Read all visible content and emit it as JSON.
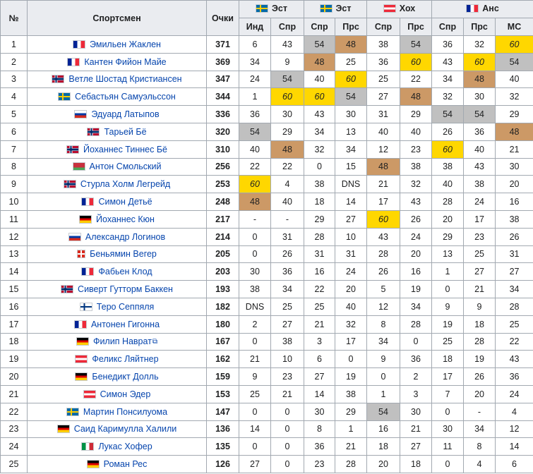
{
  "headers": {
    "num": "№",
    "athlete": "Спортсмен",
    "points": "Очки",
    "stages": [
      {
        "label": "Эст",
        "flag": "SWE",
        "subs": [
          "Инд",
          "Спр"
        ]
      },
      {
        "label": "Эст",
        "flag": "SWE",
        "subs": [
          "Спр",
          "Прс"
        ]
      },
      {
        "label": "Хох",
        "flag": "AUT",
        "subs": [
          "Спр",
          "Прс"
        ]
      },
      {
        "label": "Анс",
        "flag": "FRA",
        "subs": [
          "Спр",
          "Прс",
          "МС"
        ]
      }
    ]
  },
  "colors": {
    "gold": "#ffd700",
    "silver": "#c0c0c0",
    "bronze": "#cc9966",
    "header": "#eaecf0",
    "link": "#0645ad"
  },
  "rows": [
    {
      "num": "1",
      "flag": "FRA",
      "name": "Эмильен Жаклен",
      "points": "371",
      "results": [
        "6",
        "43",
        "54",
        "48",
        "38",
        "54",
        "36",
        "32",
        "60"
      ],
      "styles": [
        "",
        "",
        "s",
        "b",
        "",
        "s",
        "",
        "",
        "g"
      ]
    },
    {
      "num": "2",
      "flag": "FRA",
      "name": "Кантен Фийон Майе",
      "points": "369",
      "results": [
        "34",
        "9",
        "48",
        "25",
        "36",
        "60",
        "43",
        "60",
        "54"
      ],
      "styles": [
        "",
        "",
        "b",
        "",
        "",
        "g",
        "",
        "g",
        "s"
      ]
    },
    {
      "num": "3",
      "flag": "NOR",
      "name": "Ветле Шостад Кристиансен",
      "points": "347",
      "results": [
        "24",
        "54",
        "40",
        "60",
        "25",
        "22",
        "34",
        "48",
        "40"
      ],
      "styles": [
        "",
        "s",
        "",
        "g",
        "",
        "",
        "",
        "b",
        ""
      ]
    },
    {
      "num": "4",
      "flag": "SWE",
      "name": "Себастьян Самуэльссон",
      "points": "344",
      "results": [
        "1",
        "60",
        "60",
        "54",
        "27",
        "48",
        "32",
        "30",
        "32"
      ],
      "styles": [
        "",
        "g",
        "g",
        "s",
        "",
        "b",
        "",
        "",
        ""
      ]
    },
    {
      "num": "5",
      "flag": "RUS",
      "name": "Эдуард Латыпов",
      "points": "336",
      "results": [
        "36",
        "30",
        "43",
        "30",
        "31",
        "29",
        "54",
        "54",
        "29"
      ],
      "styles": [
        "",
        "",
        "",
        "",
        "",
        "",
        "s",
        "s",
        ""
      ]
    },
    {
      "num": "6",
      "flag": "NOR",
      "name": "Тарьей Бё",
      "points": "320",
      "results": [
        "54",
        "29",
        "34",
        "13",
        "40",
        "40",
        "26",
        "36",
        "48"
      ],
      "styles": [
        "s",
        "",
        "",
        "",
        "",
        "",
        "",
        "",
        "b"
      ]
    },
    {
      "num": "7",
      "flag": "NOR",
      "name": "Йоханнес Тиннес Бё",
      "points": "310",
      "results": [
        "40",
        "48",
        "32",
        "34",
        "12",
        "23",
        "60",
        "40",
        "21"
      ],
      "styles": [
        "",
        "b",
        "",
        "",
        "",
        "",
        "g",
        "",
        ""
      ]
    },
    {
      "num": "8",
      "flag": "BLR",
      "name": "Антон Смольский",
      "points": "256",
      "results": [
        "22",
        "22",
        "0",
        "15",
        "48",
        "38",
        "38",
        "43",
        "30"
      ],
      "styles": [
        "",
        "",
        "",
        "",
        "b",
        "",
        "",
        "",
        ""
      ]
    },
    {
      "num": "9",
      "flag": "NOR",
      "name": "Стурла Холм Легрейд",
      "points": "253",
      "results": [
        "60",
        "4",
        "38",
        "DNS",
        "21",
        "32",
        "40",
        "38",
        "20"
      ],
      "styles": [
        "g",
        "",
        "",
        "",
        "",
        "",
        "",
        "",
        ""
      ]
    },
    {
      "num": "10",
      "flag": "FRA",
      "name": "Симон Детьё",
      "points": "248",
      "results": [
        "48",
        "40",
        "18",
        "14",
        "17",
        "43",
        "28",
        "24",
        "16"
      ],
      "styles": [
        "b",
        "",
        "",
        "",
        "",
        "",
        "",
        "",
        ""
      ]
    },
    {
      "num": "11",
      "flag": "GER",
      "name": "Йоханнес Кюн",
      "points": "217",
      "results": [
        "-",
        "-",
        "29",
        "27",
        "60",
        "26",
        "20",
        "17",
        "38"
      ],
      "styles": [
        "",
        "",
        "",
        "",
        "g",
        "",
        "",
        "",
        ""
      ]
    },
    {
      "num": "12",
      "flag": "RUS",
      "name": "Александр Логинов",
      "points": "214",
      "results": [
        "0",
        "31",
        "28",
        "10",
        "43",
        "24",
        "29",
        "23",
        "26"
      ],
      "styles": [
        "",
        "",
        "",
        "",
        "",
        "",
        "",
        "",
        ""
      ]
    },
    {
      "num": "13",
      "flag": "SUI",
      "name": "Беньямин Вегер",
      "points": "205",
      "results": [
        "0",
        "26",
        "31",
        "31",
        "28",
        "20",
        "13",
        "25",
        "31"
      ],
      "styles": [
        "",
        "",
        "",
        "",
        "",
        "",
        "",
        "",
        ""
      ]
    },
    {
      "num": "14",
      "flag": "FRA",
      "name": "Фабьен Клод",
      "points": "203",
      "results": [
        "30",
        "36",
        "16",
        "24",
        "26",
        "16",
        "1",
        "27",
        "27"
      ],
      "styles": [
        "",
        "",
        "",
        "",
        "",
        "",
        "",
        "",
        ""
      ]
    },
    {
      "num": "15",
      "flag": "NOR",
      "name": "Сиверт Гутторм Баккен",
      "points": "193",
      "results": [
        "38",
        "34",
        "22",
        "20",
        "5",
        "19",
        "0",
        "21",
        "34"
      ],
      "styles": [
        "",
        "",
        "",
        "",
        "",
        "",
        "",
        "",
        ""
      ]
    },
    {
      "num": "16",
      "flag": "FIN",
      "name": "Теро Сеппяля",
      "points": "182",
      "results": [
        "DNS",
        "25",
        "25",
        "40",
        "12",
        "34",
        "9",
        "9",
        "28"
      ],
      "styles": [
        "",
        "",
        "",
        "",
        "",
        "",
        "",
        "",
        ""
      ]
    },
    {
      "num": "17",
      "flag": "FRA",
      "name": "Антонен Гигонна",
      "points": "180",
      "results": [
        "2",
        "27",
        "21",
        "32",
        "8",
        "28",
        "19",
        "18",
        "25"
      ],
      "styles": [
        "",
        "",
        "",
        "",
        "",
        "",
        "",
        "",
        ""
      ]
    },
    {
      "num": "18",
      "flag": "GER",
      "name": "Филип Наврат",
      "points": "167",
      "results": [
        "0",
        "38",
        "3",
        "17",
        "34",
        "0",
        "25",
        "28",
        "22"
      ],
      "styles": [
        "",
        "",
        "",
        "",
        "",
        "",
        "",
        "",
        ""
      ],
      "external": true
    },
    {
      "num": "19",
      "flag": "AUT",
      "name": "Феликс Ляйтнер",
      "points": "162",
      "results": [
        "21",
        "10",
        "6",
        "0",
        "9",
        "36",
        "18",
        "19",
        "43"
      ],
      "styles": [
        "",
        "",
        "",
        "",
        "",
        "",
        "",
        "",
        ""
      ]
    },
    {
      "num": "20",
      "flag": "GER",
      "name": "Бенедикт Долль",
      "points": "159",
      "results": [
        "9",
        "23",
        "27",
        "19",
        "0",
        "2",
        "17",
        "26",
        "36"
      ],
      "styles": [
        "",
        "",
        "",
        "",
        "",
        "",
        "",
        "",
        ""
      ]
    },
    {
      "num": "21",
      "flag": "AUT",
      "name": "Симон Эдер",
      "points": "153",
      "results": [
        "25",
        "21",
        "14",
        "38",
        "1",
        "3",
        "7",
        "20",
        "24"
      ],
      "styles": [
        "",
        "",
        "",
        "",
        "",
        "",
        "",
        "",
        ""
      ]
    },
    {
      "num": "22",
      "flag": "SWE",
      "name": "Мартин Понсилуома",
      "points": "147",
      "results": [
        "0",
        "0",
        "30",
        "29",
        "54",
        "30",
        "0",
        "-",
        "4"
      ],
      "styles": [
        "",
        "",
        "",
        "",
        "s",
        "",
        "",
        "",
        ""
      ]
    },
    {
      "num": "23",
      "flag": "GER",
      "name": "Саид Каримулла Халили",
      "points": "136",
      "results": [
        "14",
        "0",
        "8",
        "1",
        "16",
        "21",
        "30",
        "34",
        "12"
      ],
      "styles": [
        "",
        "",
        "",
        "",
        "",
        "",
        "",
        "",
        ""
      ]
    },
    {
      "num": "24",
      "flag": "ITA",
      "name": "Лукас Хофер",
      "points": "135",
      "results": [
        "0",
        "0",
        "36",
        "21",
        "18",
        "27",
        "11",
        "8",
        "14"
      ],
      "styles": [
        "",
        "",
        "",
        "",
        "",
        "",
        "",
        "",
        ""
      ]
    },
    {
      "num": "25",
      "flag": "GER",
      "name": "Роман Рес",
      "points": "126",
      "results": [
        "27",
        "0",
        "23",
        "28",
        "20",
        "18",
        "0",
        "4",
        "6"
      ],
      "styles": [
        "",
        "",
        "",
        "",
        "",
        "",
        "",
        "",
        ""
      ]
    }
  ]
}
